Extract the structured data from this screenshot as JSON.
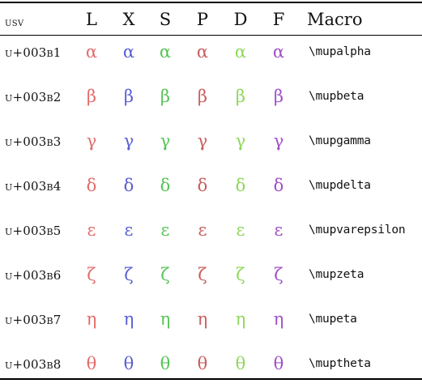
{
  "header": {
    "usv": "usv",
    "fonts": [
      {
        "label": "L",
        "color": "#e36c6c"
      },
      {
        "label": "X",
        "color": "#5a5fd1"
      },
      {
        "label": "S",
        "color": "#56c456"
      },
      {
        "label": "P",
        "color": "#c95f5f"
      },
      {
        "label": "D",
        "color": "#8fd85a"
      },
      {
        "label": "F",
        "color": "#a050c9"
      }
    ],
    "macro": "Macro"
  },
  "rows": [
    {
      "usv": "u+003b1",
      "glyph": "α",
      "macro": "\\mupalpha"
    },
    {
      "usv": "u+003b2",
      "glyph": "β",
      "macro": "\\mupbeta"
    },
    {
      "usv": "u+003b3",
      "glyph": "γ",
      "macro": "\\mupgamma"
    },
    {
      "usv": "u+003b4",
      "glyph": "δ",
      "macro": "\\mupdelta"
    },
    {
      "usv": "u+003b5",
      "glyph": "ε",
      "macro": "\\mupvarepsilon"
    },
    {
      "usv": "u+003b6",
      "glyph": "ζ",
      "macro": "\\mupzeta"
    },
    {
      "usv": "u+003b7",
      "glyph": "η",
      "macro": "\\mupeta"
    },
    {
      "usv": "u+003b8",
      "glyph": "θ",
      "macro": "\\muptheta"
    }
  ]
}
